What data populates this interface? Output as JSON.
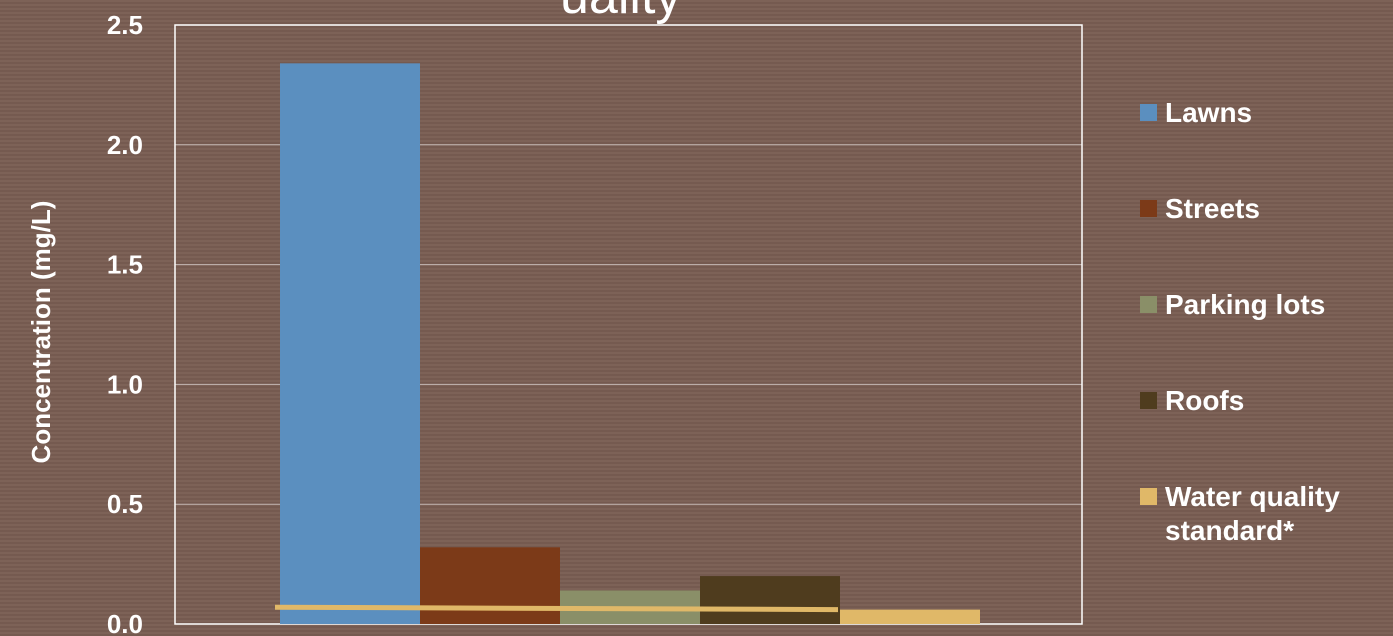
{
  "title_fragment": "uality",
  "chart_data": {
    "type": "bar",
    "title": "",
    "xlabel": "",
    "ylabel": "Concentration (mg/L)",
    "ylim": [
      0,
      2.5
    ],
    "yticks": [
      "0.0",
      "0.5",
      "1.0",
      "1.5",
      "2.0",
      "2.5"
    ],
    "grid": true,
    "legend_position": "right",
    "series": [
      {
        "name": "Lawns",
        "value": 2.34,
        "color": "#5b8fbf"
      },
      {
        "name": "Streets",
        "value": 0.32,
        "color": "#7c3a18"
      },
      {
        "name": "Parking lots",
        "value": 0.14,
        "color": "#8a8f68"
      },
      {
        "name": "Roofs",
        "value": 0.2,
        "color": "#4f3c1e"
      },
      {
        "name": "Water quality standard*",
        "value": 0.06,
        "color": "#e0b868"
      }
    ],
    "standard_line": {
      "value_start": 0.07,
      "value_end": 0.06,
      "color": "#e0b868"
    }
  }
}
